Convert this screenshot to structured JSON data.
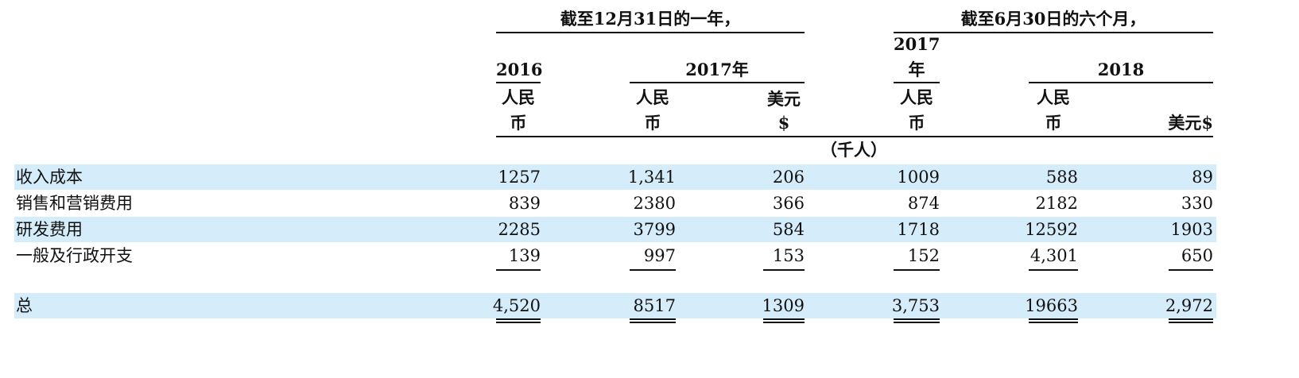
{
  "header": {
    "group_year": "截至12月31日的一年，",
    "group_half": "截至6月30日的六个月，",
    "y2016": "2016",
    "y2017a": "2017年",
    "y2017b_1": "2017",
    "y2017b_2": "年",
    "y2018": "2018",
    "rmb_1": "人民",
    "rmb_2": "币",
    "usd_1": "美元",
    "usd_2": "$",
    "usd_full": "美元$",
    "unit": "（千人）"
  },
  "rows": [
    {
      "label": "收入成本",
      "values": [
        "1257",
        "1,341",
        "206",
        "1009",
        "588",
        "89"
      ]
    },
    {
      "label": "销售和营销费用",
      "values": [
        "839",
        "2380",
        "366",
        "874",
        "2182",
        "330"
      ]
    },
    {
      "label": "研发费用",
      "values": [
        "2285",
        "3799",
        "584",
        "1718",
        "12592",
        "1903"
      ]
    },
    {
      "label": "一般及行政开支",
      "values": [
        "139",
        "997",
        "153",
        "152",
        "4,301",
        "650"
      ]
    }
  ],
  "total": {
    "label": "总",
    "values": [
      "4,520",
      "8517",
      "1309",
      "3,753",
      "19663",
      "2,972"
    ]
  },
  "colors": {
    "band": "#d5ecfa",
    "text": "#111111"
  }
}
